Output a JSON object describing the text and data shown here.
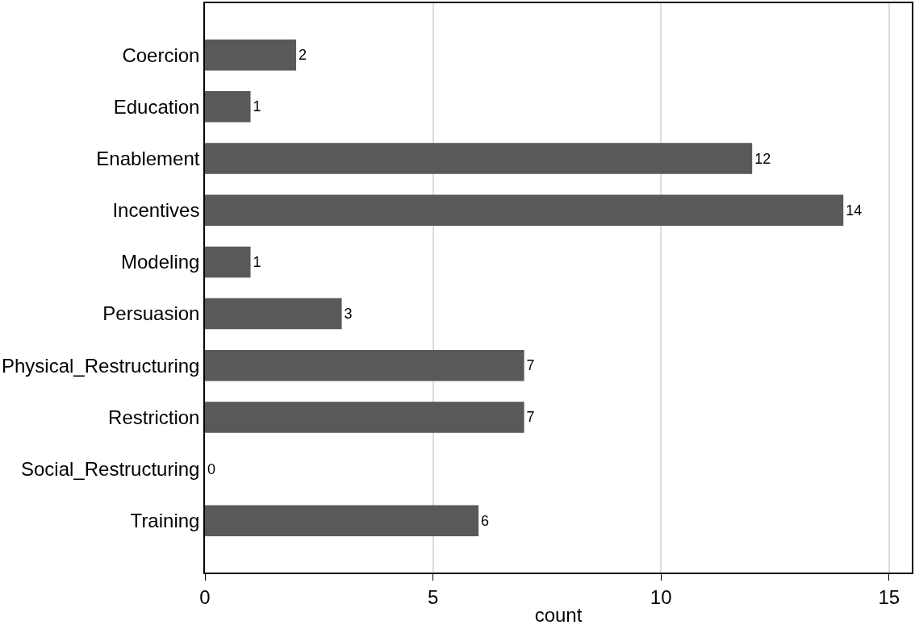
{
  "chart_data": {
    "type": "bar",
    "orientation": "horizontal",
    "xlabel": "count",
    "categories": [
      "Coercion",
      "Education",
      "Enablement",
      "Incentives",
      "Modeling",
      "Persuasion",
      "Physical_Restructuring",
      "Restriction",
      "Social_Restructuring",
      "Training"
    ],
    "values": [
      2,
      1,
      12,
      14,
      1,
      3,
      7,
      7,
      0,
      6
    ],
    "color": "#595959",
    "data_labels": true,
    "xlim": [
      0,
      15.5
    ],
    "xticks": [
      0,
      5,
      10,
      15
    ],
    "grid": "x",
    "legend": false
  }
}
